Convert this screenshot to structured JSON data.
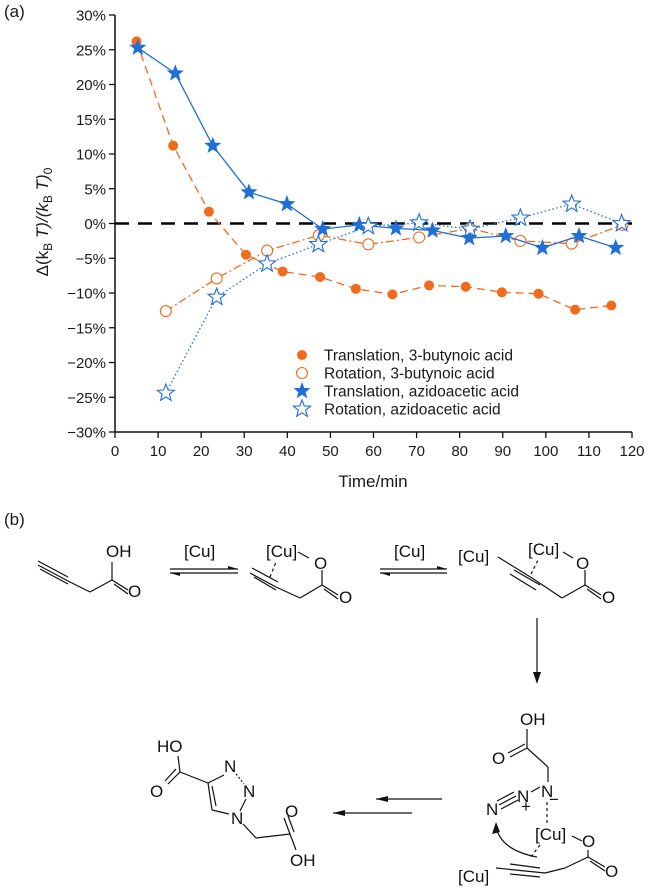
{
  "panel_labels": {
    "a": "(a)",
    "b": "(b)"
  },
  "chart_data": {
    "type": "line",
    "title": "",
    "xlabel": "Time/min",
    "ylabel_parts": {
      "delta": "Δ(k",
      "sub_b1": "B",
      "t1": " T)/(k",
      "sub_b2": "B",
      "t2": " T)",
      "sub_0": "0"
    },
    "ylabel": "Δ(k_B T)/(k_B T)_0",
    "xlim": [
      0,
      120
    ],
    "ylim": [
      -30,
      30
    ],
    "x_ticks": [
      0,
      10,
      20,
      30,
      40,
      50,
      60,
      70,
      80,
      90,
      100,
      110,
      120
    ],
    "x_tick_labels": [
      "0",
      "10",
      "20",
      "30",
      "40",
      "50",
      "60",
      "70",
      "80",
      "90",
      "100",
      "110",
      "120"
    ],
    "y_ticks": [
      30,
      25,
      20,
      15,
      10,
      5,
      0,
      -5,
      -10,
      -15,
      -20,
      -25,
      -30
    ],
    "y_tick_labels": [
      "30%",
      "25%",
      "20%",
      "15%",
      "10%",
      "5%",
      "0%",
      "−5%",
      "−10%",
      "−15%",
      "−20%",
      "−25%",
      "−30%"
    ],
    "grid": false,
    "reference_line": {
      "y": 0,
      "style": "dashed",
      "color": "#000000"
    },
    "legend_position": "bottom-right",
    "series": [
      {
        "name": "Translation, 3-butynoic acid",
        "color": "#f26b1d",
        "marker": "filled-circle",
        "line_style": "dashed",
        "x": [
          5,
          13.5,
          21.8,
          30.4,
          38.9,
          47.6,
          55.9,
          64.4,
          72.9,
          81.4,
          89.8,
          98.3,
          106.8,
          115.2
        ],
        "y": [
          26.2,
          11.2,
          1.7,
          -4.5,
          -6.9,
          -7.7,
          -9.4,
          -10.2,
          -8.9,
          -9.1,
          -9.9,
          -10.1,
          -12.4,
          -11.8
        ]
      },
      {
        "name": "Rotation, 3-butynoic acid",
        "color": "#f26b1d",
        "marker": "open-circle",
        "line_style": "dashdot",
        "x": [
          11.8,
          23.6,
          35.3,
          47.3,
          58.8,
          70.6,
          82.4,
          94.1,
          106.0,
          117.8
        ],
        "y": [
          -12.6,
          -7.9,
          -3.9,
          -1.7,
          -3.0,
          -2.0,
          -0.7,
          -2.5,
          -2.9,
          -0.2
        ]
      },
      {
        "name": "Translation, azidoacetic acid",
        "color": "#1f6fd6",
        "marker": "filled-star",
        "line_style": "solid",
        "x": [
          5.3,
          14.0,
          22.7,
          31.1,
          39.9,
          48.2,
          56.7,
          65.2,
          73.7,
          82.2,
          90.7,
          99.2,
          107.7,
          116.2
        ],
        "y": [
          25.3,
          21.6,
          11.2,
          4.5,
          2.8,
          -0.8,
          -0.2,
          -0.7,
          -1.0,
          -2.1,
          -1.8,
          -3.5,
          -1.8,
          -3.5
        ]
      },
      {
        "name": "Rotation, azidoacetic acid",
        "color": "#1f6fd6",
        "marker": "open-star",
        "line_style": "dotted",
        "x": [
          11.8,
          23.6,
          35.3,
          47.2,
          58.8,
          70.6,
          82.4,
          94.1,
          106.0,
          117.6
        ],
        "y": [
          -24.4,
          -10.6,
          -5.8,
          -3.0,
          -0.4,
          0.1,
          -0.8,
          0.8,
          2.8,
          0.0
        ]
      }
    ]
  },
  "scheme": {
    "reagent_1": "[Cu]",
    "reagent_2": "[Cu]",
    "compound_1": {
      "labels": [
        "OH",
        "O"
      ],
      "name": "3-butynoic acid"
    },
    "intermediate_1": {
      "labels": [
        "[Cu]",
        "O",
        "O"
      ]
    },
    "intermediate_2": {
      "labels": [
        "[Cu]",
        "[Cu]",
        "O",
        "O"
      ]
    },
    "intermediate_3": {
      "labels": [
        "OH",
        "O",
        "N",
        "N",
        "N",
        "+",
        "−",
        "[Cu]",
        "O",
        "[Cu]",
        "O"
      ]
    },
    "product": {
      "labels": [
        "HO",
        "O",
        "N",
        "N",
        "N",
        "O",
        "OH"
      ]
    }
  }
}
